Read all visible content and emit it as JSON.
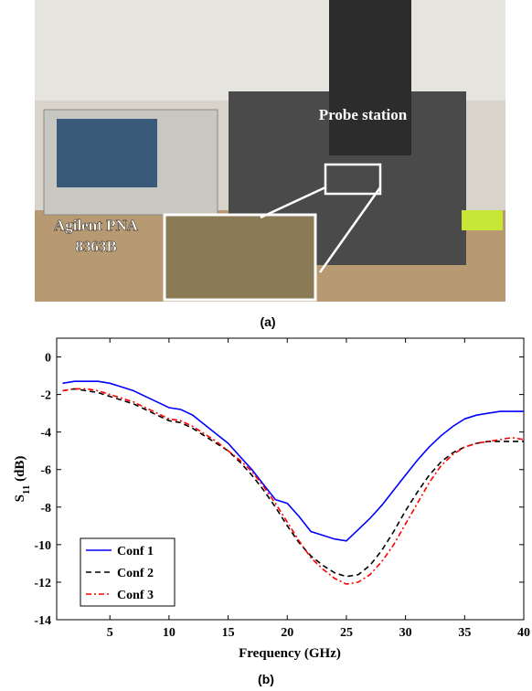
{
  "photo": {
    "labels": [
      "Probe station",
      "Agilent PNA",
      "8363B"
    ],
    "caption": "(a)"
  },
  "chart_data": {
    "type": "line",
    "caption": "(b)",
    "xlabel": "Frequency (GHz)",
    "ylabel": "S",
    "ylabel_sub": "11",
    "ylabel_unit": " (dB)",
    "x": [
      1,
      2,
      3,
      4,
      5,
      6,
      7,
      8,
      9,
      10,
      11,
      12,
      13,
      14,
      15,
      16,
      17,
      18,
      19,
      20,
      21,
      22,
      23,
      24,
      25,
      26,
      27,
      28,
      29,
      30,
      31,
      32,
      33,
      34,
      35,
      36,
      37,
      38,
      39,
      40
    ],
    "series": [
      {
        "name": "Conf 1",
        "color": "#0000ff",
        "dash": "solid",
        "values": [
          -1.4,
          -1.3,
          -1.3,
          -1.3,
          -1.4,
          -1.6,
          -1.8,
          -2.1,
          -2.4,
          -2.7,
          -2.8,
          -3.1,
          -3.6,
          -4.1,
          -4.6,
          -5.3,
          -6.0,
          -6.8,
          -7.6,
          -7.8,
          -8.5,
          -9.3,
          -9.5,
          -9.7,
          -9.8,
          -9.2,
          -8.6,
          -7.9,
          -7.1,
          -6.3,
          -5.5,
          -4.8,
          -4.2,
          -3.7,
          -3.3,
          -3.1,
          -3.0,
          -2.9,
          -2.9,
          -2.9
        ]
      },
      {
        "name": "Conf 2",
        "color": "#000000",
        "dash": "dashed",
        "values": [
          -1.8,
          -1.7,
          -1.8,
          -1.9,
          -2.1,
          -2.3,
          -2.5,
          -2.8,
          -3.1,
          -3.4,
          -3.5,
          -3.8,
          -4.2,
          -4.6,
          -5.0,
          -5.6,
          -6.3,
          -7.1,
          -8.0,
          -9.0,
          -9.9,
          -10.6,
          -11.1,
          -11.5,
          -11.7,
          -11.6,
          -11.1,
          -10.3,
          -9.3,
          -8.2,
          -7.2,
          -6.3,
          -5.6,
          -5.1,
          -4.8,
          -4.6,
          -4.5,
          -4.5,
          -4.5,
          -4.5
        ]
      },
      {
        "name": "Conf 3",
        "color": "#ff0000",
        "dash": "dashdot",
        "values": [
          -1.8,
          -1.7,
          -1.7,
          -1.8,
          -2.0,
          -2.2,
          -2.4,
          -2.7,
          -3.0,
          -3.3,
          -3.4,
          -3.7,
          -4.1,
          -4.5,
          -5.0,
          -5.5,
          -6.1,
          -6.9,
          -7.8,
          -8.8,
          -9.8,
          -10.7,
          -11.3,
          -11.8,
          -12.1,
          -12.0,
          -11.6,
          -10.9,
          -10.0,
          -8.9,
          -7.8,
          -6.7,
          -5.8,
          -5.2,
          -4.8,
          -4.6,
          -4.5,
          -4.4,
          -4.3,
          -4.4
        ]
      }
    ],
    "xlim": [
      0.5,
      40
    ],
    "xticks": [
      5,
      10,
      15,
      20,
      25,
      30,
      35,
      40
    ],
    "ylim": [
      -14,
      1
    ],
    "yticks": [
      0,
      -2,
      -4,
      -6,
      -8,
      -10,
      -12,
      -14
    ],
    "grid": false,
    "legend": "lower left"
  }
}
